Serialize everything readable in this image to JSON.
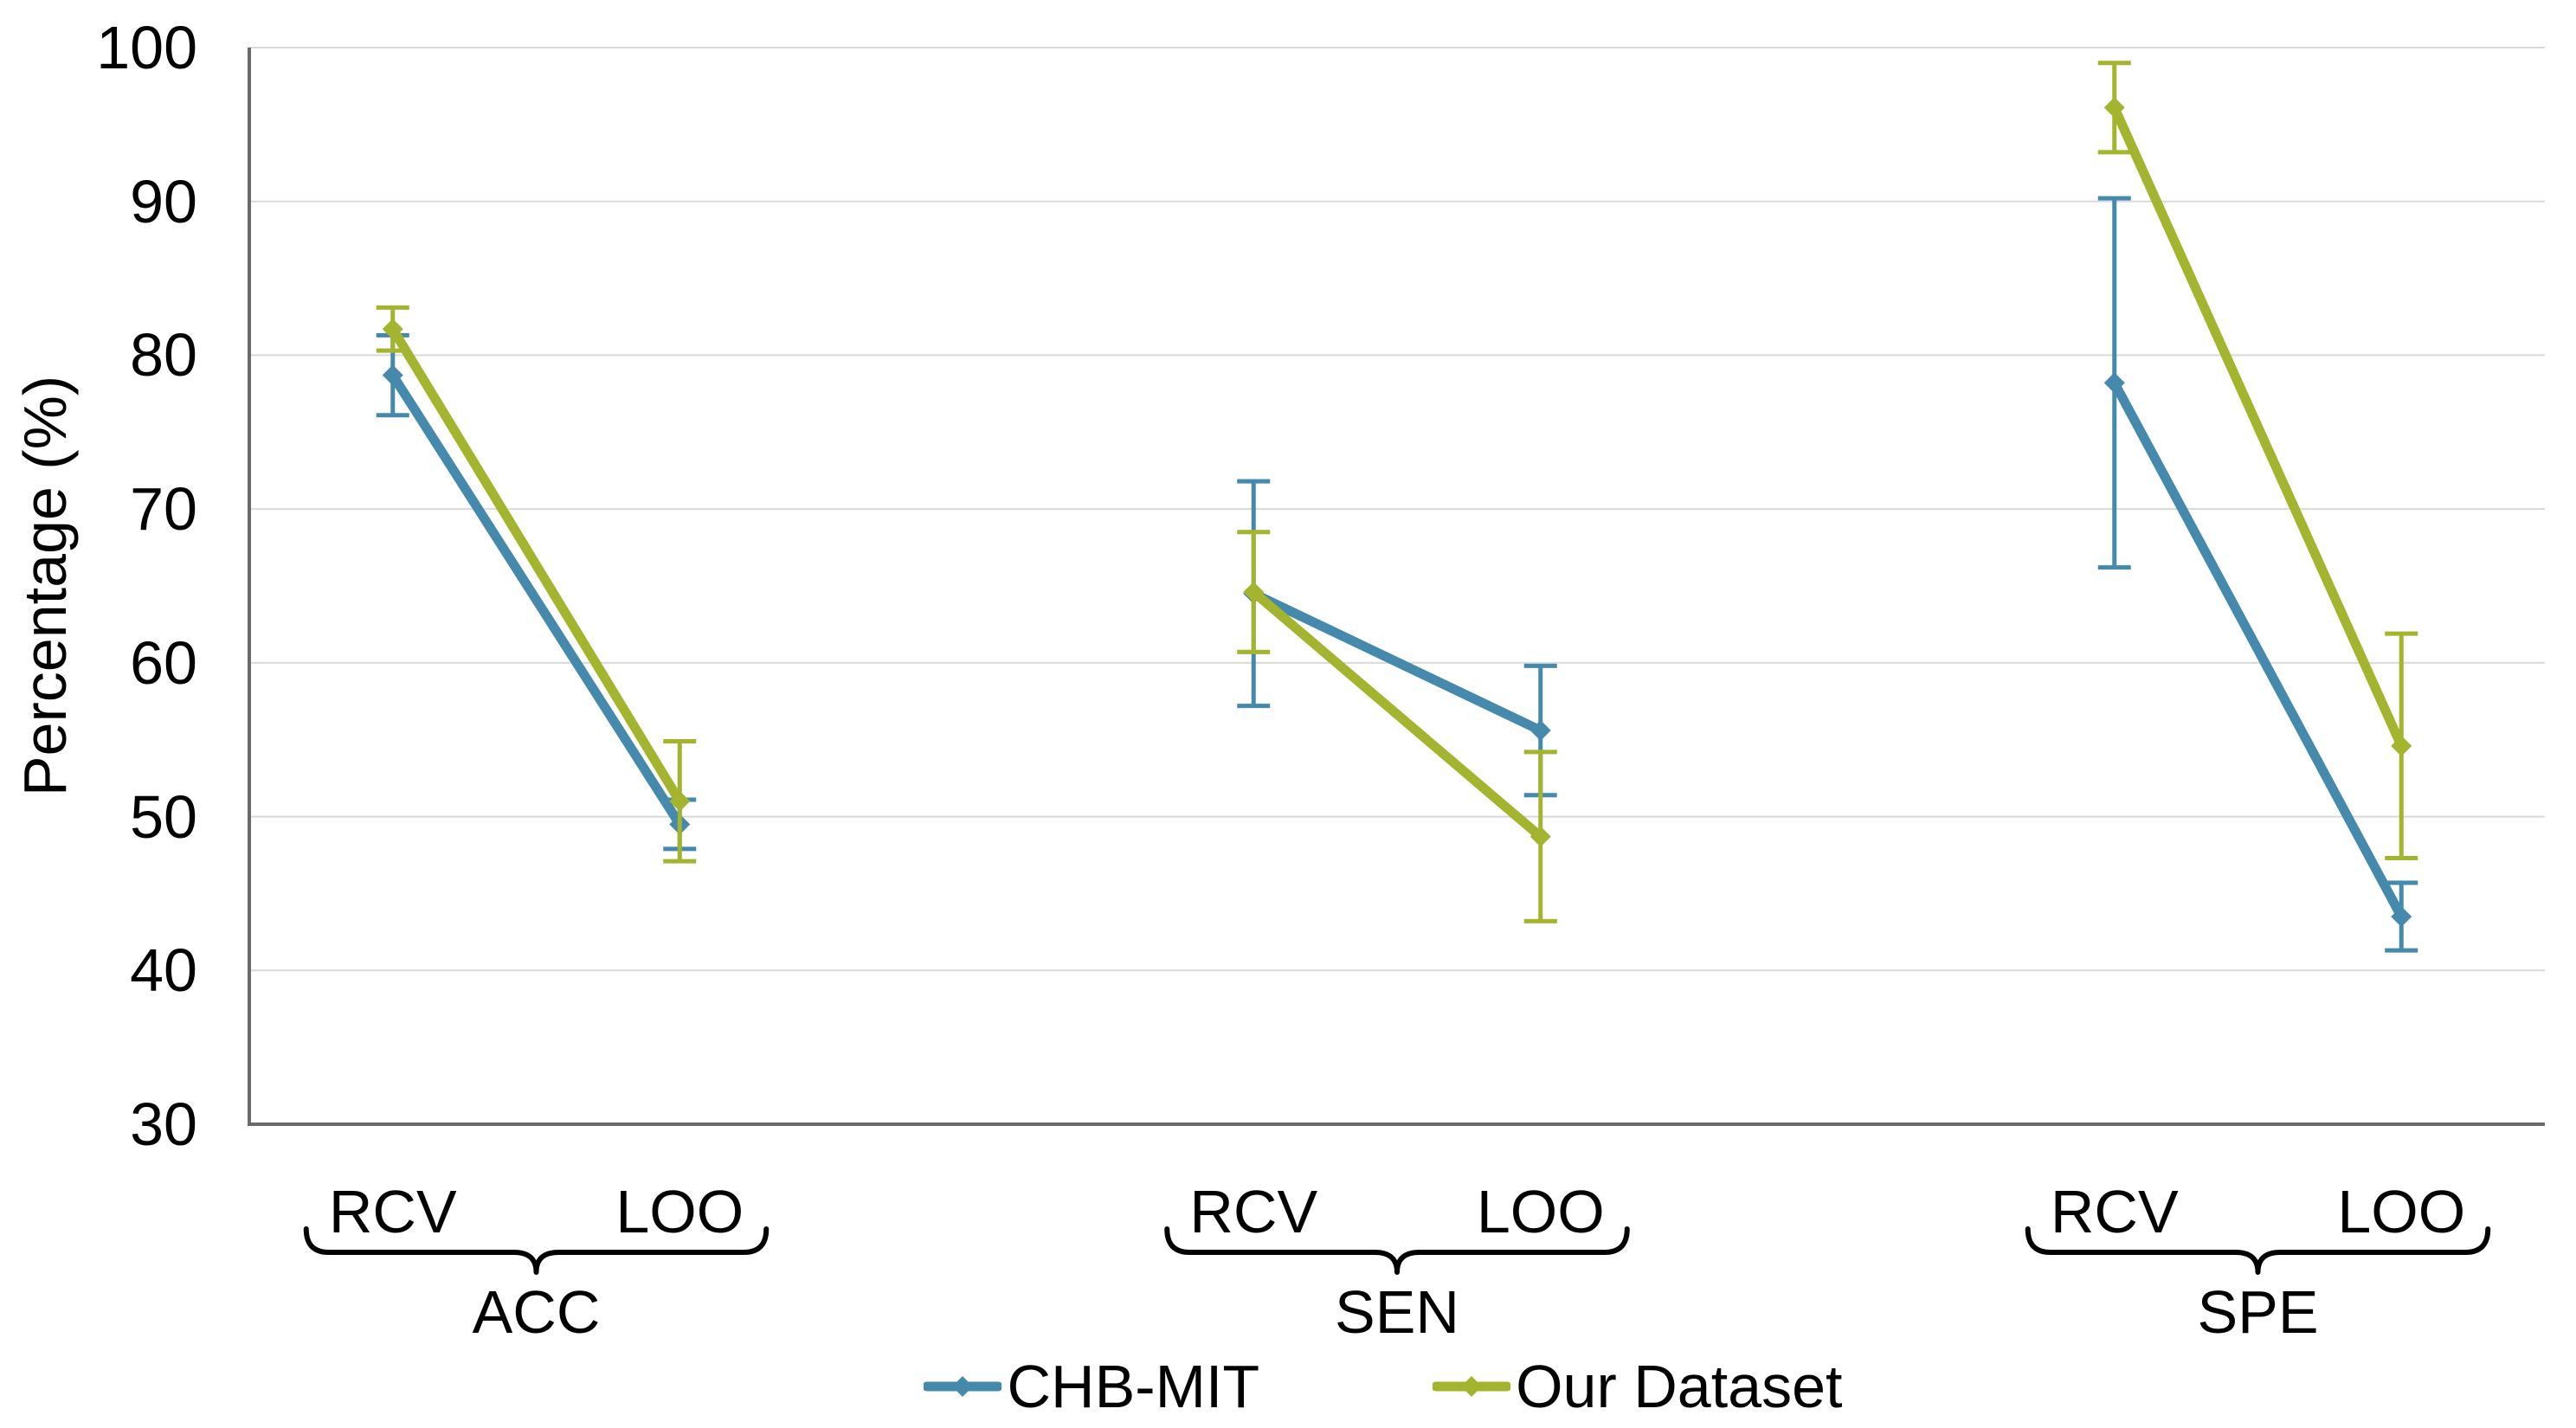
{
  "chart_data": {
    "type": "line",
    "title": "",
    "ylabel": "Percentage (%)",
    "ylim": [
      30,
      100
    ],
    "yticks": [
      100,
      90,
      80,
      70,
      60,
      50,
      40,
      30
    ],
    "grid": true,
    "legend_position": "bottom-center",
    "groups": [
      {
        "label": "ACC",
        "conditions": [
          "RCV",
          "LOO"
        ]
      },
      {
        "label": "SEN",
        "conditions": [
          "RCV",
          "LOO"
        ]
      },
      {
        "label": "SPE",
        "conditions": [
          "RCV",
          "LOO"
        ]
      }
    ],
    "series": [
      {
        "name": "CHB-MIT",
        "color": "#4589ad",
        "values": {
          "ACC": {
            "RCV": 78.7,
            "LOO": 49.5
          },
          "SEN": {
            "RCV": 64.5,
            "LOO": 55.6
          },
          "SPE": {
            "RCV": 78.2,
            "LOO": 43.5
          }
        },
        "errors": {
          "ACC": {
            "RCV": 2.6,
            "LOO": 1.6
          },
          "SEN": {
            "RCV": 7.3,
            "LOO": 4.2
          },
          "SPE": {
            "RCV": 12.0,
            "LOO": 2.2
          }
        }
      },
      {
        "name": "Our Dataset",
        "color": "#a4b42e",
        "values": {
          "ACC": {
            "RCV": 81.7,
            "LOO": 51.0
          },
          "SEN": {
            "RCV": 64.6,
            "LOO": 48.7
          },
          "SPE": {
            "RCV": 96.1,
            "LOO": 54.6
          }
        },
        "errors": {
          "ACC": {
            "RCV": 1.4,
            "LOO": 3.9
          },
          "SEN": {
            "RCV": 3.9,
            "LOO": 5.5
          },
          "SPE": {
            "RCV": 2.9,
            "LOO": 7.3
          }
        }
      }
    ]
  }
}
